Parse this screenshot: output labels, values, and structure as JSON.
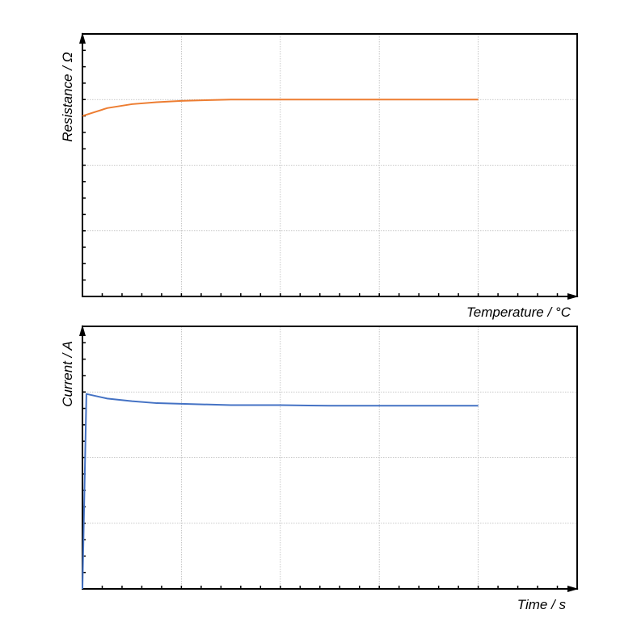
{
  "chart_data": [
    {
      "type": "line",
      "xlabel": "Temperature / °C",
      "ylabel": "Resistance / Ω",
      "xlim": [
        0,
        5
      ],
      "ylim": [
        0,
        4
      ],
      "grid": true,
      "series": [
        {
          "color": "#ED7D31",
          "x": [
            0,
            0.25,
            0.5,
            0.75,
            1.0,
            1.25,
            1.5,
            1.75,
            2.0,
            2.5,
            3.0,
            3.5,
            4.0
          ],
          "y": [
            2.75,
            2.87,
            2.93,
            2.96,
            2.98,
            2.99,
            3.0,
            3.0,
            3.0,
            3.0,
            3.0,
            3.0,
            3.0
          ]
        }
      ]
    },
    {
      "type": "line",
      "xlabel": "Time / s",
      "ylabel": "Current / A",
      "xlim": [
        0,
        5
      ],
      "ylim": [
        0,
        4
      ],
      "grid": true,
      "series": [
        {
          "color": "#4472C4",
          "x": [
            0,
            0.04,
            0.25,
            0.5,
            0.75,
            1.0,
            1.5,
            2.0,
            2.5,
            3.0,
            3.5,
            4.0
          ],
          "y": [
            0,
            2.97,
            2.9,
            2.86,
            2.83,
            2.82,
            2.8,
            2.8,
            2.79,
            2.79,
            2.79,
            2.79
          ]
        }
      ]
    }
  ]
}
